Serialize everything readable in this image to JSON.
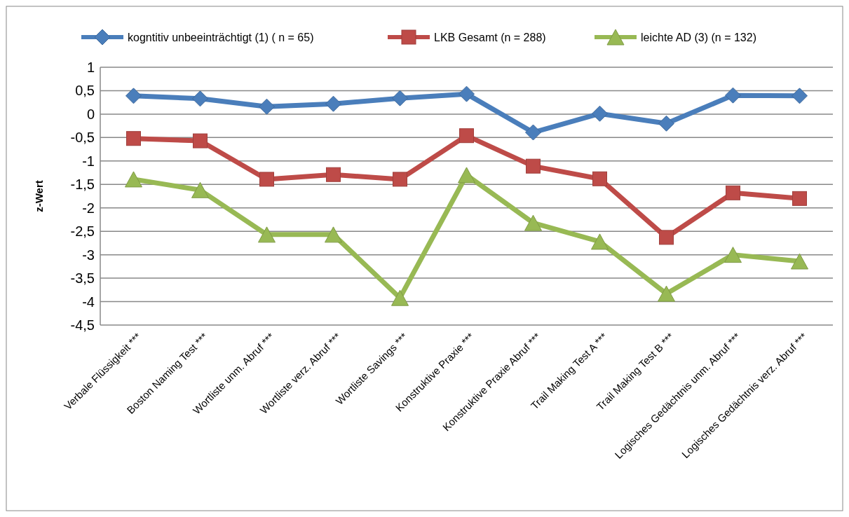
{
  "chart_data": {
    "type": "line",
    "ylabel": "z-Wert",
    "categories": [
      "Verbale Flüssigkeit ***",
      "Boston Naming Test ***",
      "Wortliste unm. Abruf ***",
      "Wortliste verz. Abruf ***",
      "Wortliste Savings ***",
      "Konstruktive Praxie ***",
      "Konstruktive Praxie Abruf ***",
      "Trail Making Test A ***",
      "Trail Making Test B ***",
      "Logisches Gedächtnis unm. Abruf ***",
      "Logisches Gedächtnis verz. Abruf ***"
    ],
    "series": [
      {
        "name": "kogntitiv unbeeinträchtigt (1) ( n = 65)",
        "color": "#4a7ebb",
        "marker": "diamond",
        "values": [
          0.39,
          0.33,
          0.16,
          0.22,
          0.34,
          0.43,
          -0.39,
          0.01,
          -0.2,
          0.4,
          0.39
        ]
      },
      {
        "name": "LKB Gesamt (n = 288)",
        "color": "#be4b48",
        "marker": "square",
        "values": [
          -0.52,
          -0.57,
          -1.39,
          -1.29,
          -1.39,
          -0.46,
          -1.11,
          -1.38,
          -2.63,
          -1.68,
          -1.8
        ]
      },
      {
        "name": "leichte AD (3) (n = 132)",
        "color": "#98b954",
        "marker": "triangle",
        "values": [
          -1.39,
          -1.62,
          -2.57,
          -2.57,
          -3.92,
          -1.3,
          -2.32,
          -2.72,
          -3.83,
          -3.0,
          -3.14
        ]
      }
    ],
    "ylim": [
      -4.5,
      1
    ],
    "yticks": [
      {
        "value": 1,
        "label": "1"
      },
      {
        "value": 0.5,
        "label": "0,5"
      },
      {
        "value": 0,
        "label": "0"
      },
      {
        "value": -0.5,
        "label": "-0,5"
      },
      {
        "value": -1,
        "label": "-1"
      },
      {
        "value": -1.5,
        "label": "-1,5"
      },
      {
        "value": -2,
        "label": "-2"
      },
      {
        "value": -2.5,
        "label": "-2,5"
      },
      {
        "value": -3,
        "label": "-3"
      },
      {
        "value": -3.5,
        "label": "-3,5"
      },
      {
        "value": -4,
        "label": "-4"
      },
      {
        "value": -4.5,
        "label": "-4,5"
      }
    ],
    "grid": "y",
    "legend": "top",
    "line_style": "solid"
  }
}
